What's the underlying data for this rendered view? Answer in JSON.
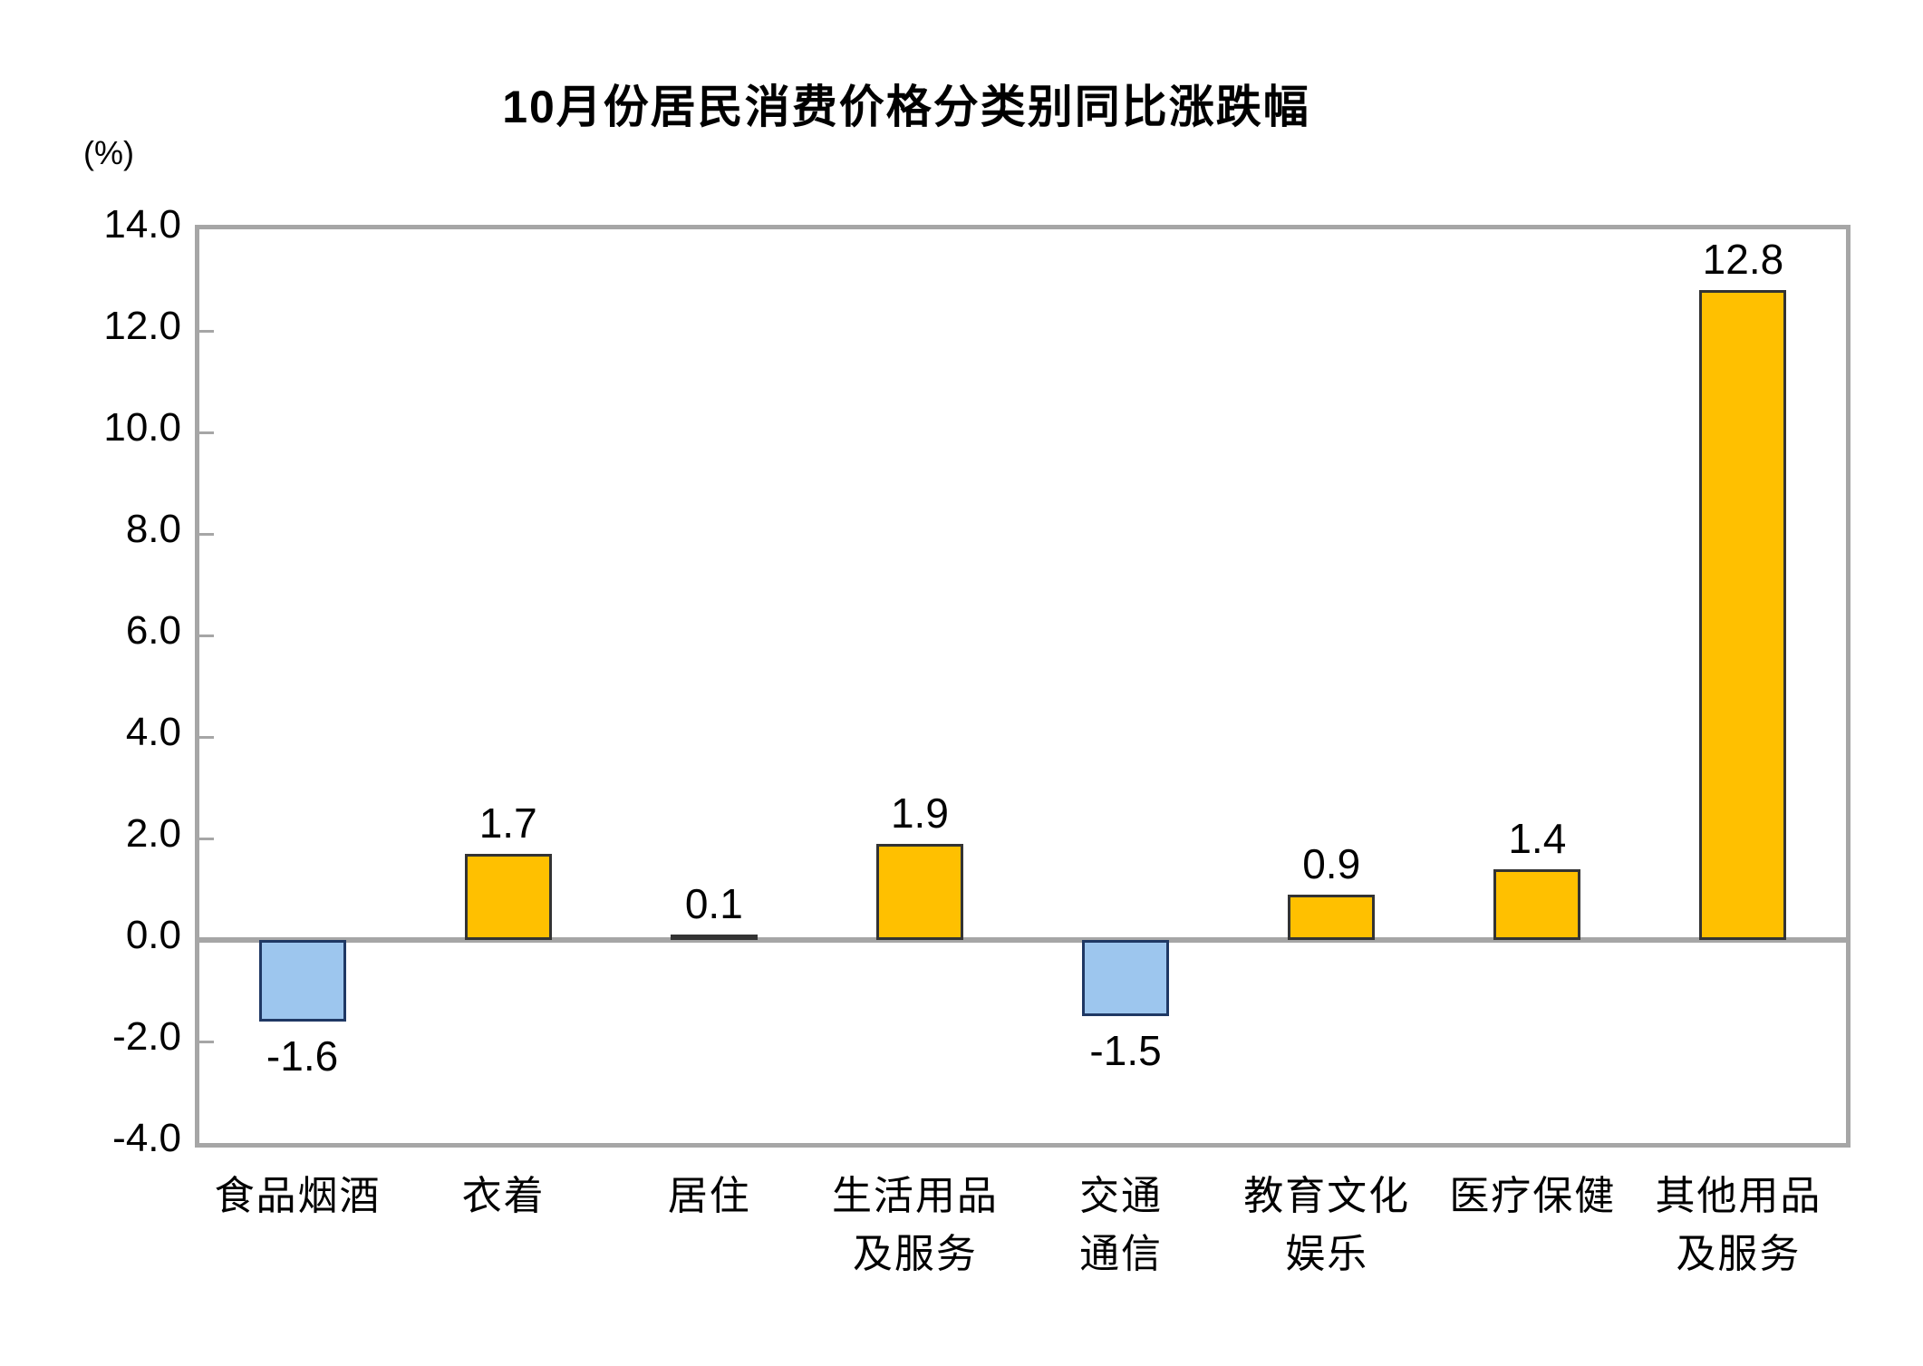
{
  "chart_data": {
    "type": "bar",
    "title": "10月份居民消费价格分类别同比涨跌幅",
    "unit_label": "(%)",
    "categories": [
      "食品烟酒",
      "衣着",
      "居住",
      "生活用品\n及服务",
      "交通\n通信",
      "教育文化\n娱乐",
      "医疗保健",
      "其他用品\n及服务"
    ],
    "values": [
      -1.6,
      1.7,
      0.1,
      1.9,
      -1.5,
      0.9,
      1.4,
      12.8
    ],
    "value_labels": [
      "-1.6",
      "1.7",
      "0.1",
      "1.9",
      "-1.5",
      "0.9",
      "1.4",
      "12.8"
    ],
    "ylim": [
      -4.0,
      14.0
    ],
    "y_ticks": [
      14.0,
      12.0,
      10.0,
      8.0,
      6.0,
      4.0,
      2.0,
      0.0,
      -2.0,
      -4.0
    ],
    "y_tick_labels": [
      "14.0",
      "12.0",
      "10.0",
      "8.0",
      "6.0",
      "4.0",
      "2.0",
      "0.0",
      "-2.0",
      "-4.0"
    ],
    "grid": "off",
    "legend": "none",
    "colors": {
      "positive_fill": "#FFC000",
      "positive_border": "#333333",
      "negative_fill": "#9DC6EE",
      "negative_border": "#1F3864",
      "axis": "#A6A6A6",
      "text": "#000000"
    }
  }
}
